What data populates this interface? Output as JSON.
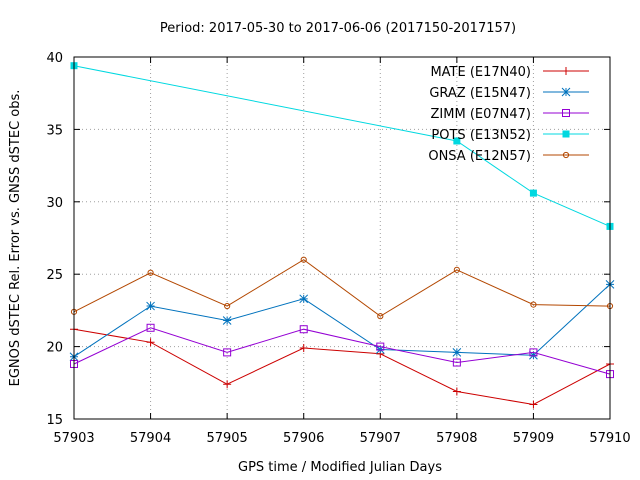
{
  "chart_data": {
    "type": "line",
    "title": "Period: 2017-05-30 to 2017-06-06 (2017150-2017157)",
    "xlabel": "GPS time / Modified Julian Days",
    "ylabel": "EGNOS dSTEC Rel. Error vs. GNSS dSTEC obs.",
    "x": [
      57903,
      57904,
      57905,
      57906,
      57907,
      57908,
      57909,
      57910
    ],
    "xlim": [
      57903,
      57910
    ],
    "ylim": [
      15,
      40
    ],
    "xticks": [
      57903,
      57904,
      57905,
      57906,
      57907,
      57908,
      57909,
      57910
    ],
    "yticks": [
      15,
      20,
      25,
      30,
      35,
      40
    ],
    "grid": true,
    "legend_position": "top-right",
    "series": [
      {
        "name": "MATE (E17N40)",
        "color": "#cc0000",
        "marker": "plus",
        "x": [
          57903,
          57904,
          57905,
          57906,
          57907,
          57908,
          57909,
          57910
        ],
        "values": [
          21.2,
          20.3,
          17.4,
          19.9,
          19.5,
          16.9,
          16.0,
          18.8
        ]
      },
      {
        "name": "GRAZ (E15N47)",
        "color": "#0072bd",
        "marker": "star",
        "x": [
          57903,
          57904,
          57905,
          57906,
          57907,
          57908,
          57909,
          57910
        ],
        "values": [
          19.3,
          22.8,
          21.8,
          23.3,
          19.8,
          19.6,
          19.4,
          24.3
        ]
      },
      {
        "name": "ZIMM (E07N47)",
        "color": "#9400d3",
        "marker": "open-square",
        "x": [
          57903,
          57904,
          57905,
          57906,
          57907,
          57908,
          57909,
          57910
        ],
        "values": [
          18.8,
          21.3,
          19.6,
          21.2,
          20.0,
          18.9,
          19.6,
          18.1
        ]
      },
      {
        "name": "POTS (E13N52)",
        "color": "#00d8e0",
        "marker": "filled-square",
        "x": [
          57903,
          57908,
          57909,
          57910
        ],
        "values": [
          39.4,
          34.2,
          30.6,
          28.3
        ]
      },
      {
        "name": "ONSA (E12N57)",
        "color": "#b34700",
        "marker": "open-circle",
        "x": [
          57903,
          57904,
          57905,
          57906,
          57907,
          57908,
          57909,
          57910
        ],
        "values": [
          22.4,
          25.1,
          22.8,
          26.0,
          22.1,
          25.3,
          22.9,
          22.8
        ]
      }
    ]
  }
}
